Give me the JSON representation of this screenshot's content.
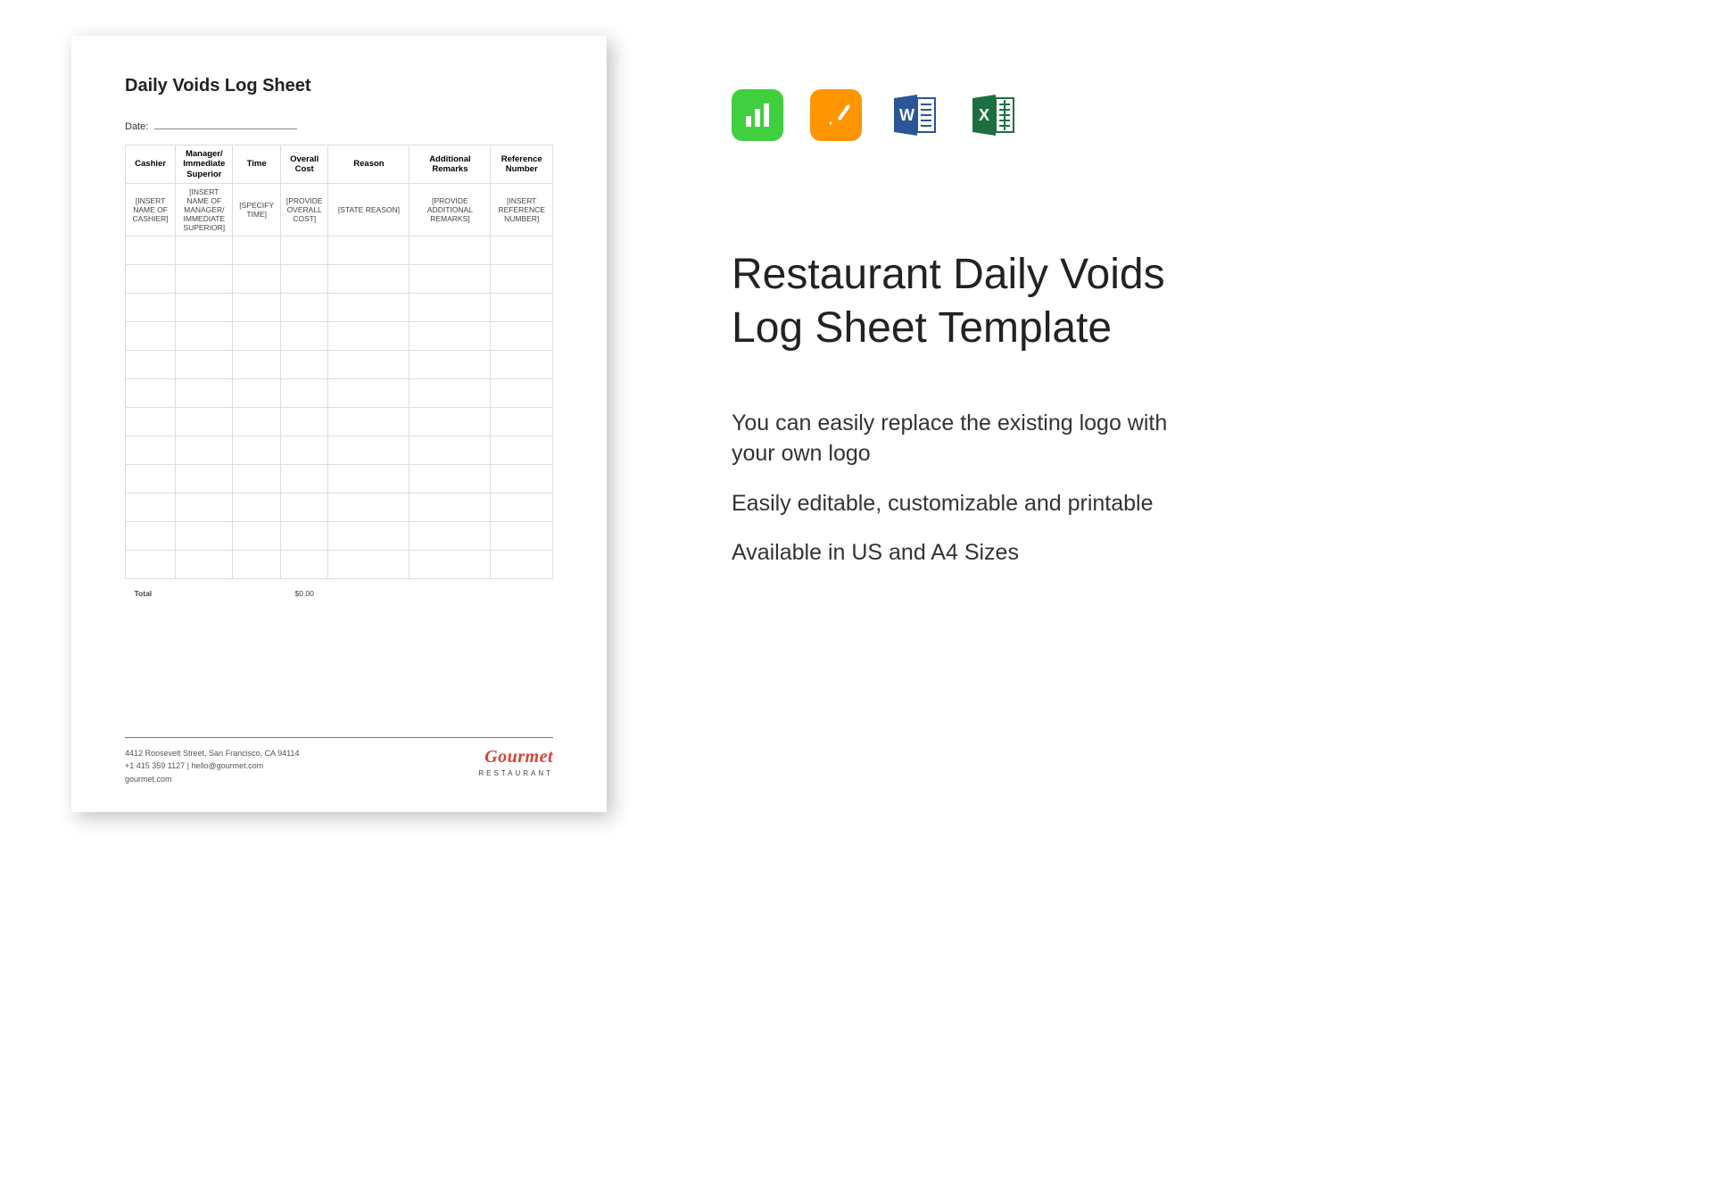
{
  "document": {
    "title": "Daily Voids Log Sheet",
    "date_label": "Date:",
    "columns": [
      "Cashier",
      "Manager/ Immediate Superior",
      "Time",
      "Overall Cost",
      "Reason",
      "Additional Remarks",
      "Reference Number"
    ],
    "sample_row": [
      "[INSERT NAME OF CASHIER]",
      "[INSERT NAME OF MANAGER/ IMMEDIATE SUPERIOR]",
      "[SPECIFY TIME]",
      "[PROVIDE OVERALL COST]",
      "[STATE REASON]",
      "[PROVIDE ADDITIONAL REMARKS]",
      "[INSERT REFERENCE NUMBER]"
    ],
    "empty_row_count": 12,
    "total_label": "Total",
    "total_cost": "$0.00",
    "footer": {
      "address": "4412 Roosevelt Street, San Francisco, CA 94114",
      "contact": "+1 415 359 1127 | hello@gourmet.com",
      "website": "gourmet.com",
      "brand_name": "Gourmet",
      "brand_sub": "RESTAURANT"
    }
  },
  "icons": {
    "numbers": {
      "bg": "#3fcf3f",
      "name": "numbers-icon"
    },
    "pages": {
      "bg": "#ff9500",
      "name": "pages-icon"
    },
    "word": {
      "bg": "#2a5699",
      "name": "word-icon"
    },
    "excel": {
      "bg": "#1d6f42",
      "name": "excel-icon"
    }
  },
  "product": {
    "title_line1": "Restaurant Daily Voids",
    "title_line2": "Log Sheet Template",
    "features": [
      "You can easily replace the existing logo with your own logo",
      "Easily editable, customizable and printable",
      "Available in US and A4 Sizes"
    ]
  },
  "style": {
    "page_bg": "#ffffff",
    "brand_color": "#d84339",
    "table_border": "#dddddd"
  }
}
